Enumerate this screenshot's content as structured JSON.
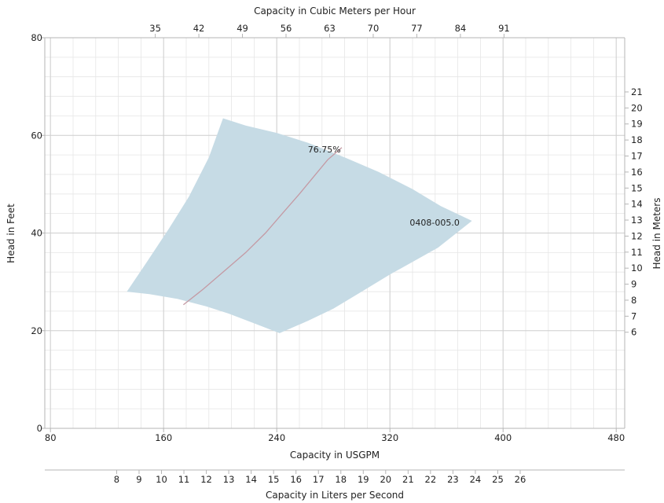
{
  "chart_data": {
    "type": "area",
    "title": "",
    "x_primary": {
      "label": "Capacity in USGPM",
      "range": [
        76,
        486
      ],
      "ticks": [
        80,
        160,
        240,
        320,
        400,
        480
      ],
      "minor_step": 16
    },
    "x_top": {
      "label": "Capacity in Cubic Meters per Hour",
      "ticks": [
        35,
        42,
        49,
        56,
        63,
        70,
        77,
        84,
        91
      ]
    },
    "x_bottom2": {
      "label": "Capacity in Liters per Second",
      "ticks": [
        8,
        9,
        10,
        11,
        12,
        13,
        14,
        15,
        16,
        17,
        18,
        19,
        20,
        21,
        22,
        23,
        24,
        25,
        26
      ]
    },
    "y_primary": {
      "label": "Head in Feet",
      "range": [
        0,
        80
      ],
      "ticks": [
        0,
        20,
        40,
        60,
        80
      ],
      "minor_step": 4
    },
    "y_right": {
      "label": "Head in Meters",
      "ticks": [
        6,
        7,
        8,
        9,
        10,
        11,
        12,
        13,
        14,
        15,
        16,
        17,
        18,
        19,
        20,
        21
      ]
    },
    "grid": true,
    "series": [
      {
        "name": "0408-005.0",
        "kind": "operating-region",
        "color": "#c6dbe5",
        "polygon": [
          [
            134,
            28
          ],
          [
            148,
            34
          ],
          [
            164,
            41
          ],
          [
            178,
            47.5
          ],
          [
            192,
            55.5
          ],
          [
            202,
            63.5
          ],
          [
            218,
            62
          ],
          [
            240,
            60.5
          ],
          [
            262,
            58.5
          ],
          [
            288,
            55.5
          ],
          [
            312,
            52.5
          ],
          [
            336,
            49
          ],
          [
            356,
            45.5
          ],
          [
            378,
            42.5
          ],
          [
            354,
            37
          ],
          [
            320,
            31.5
          ],
          [
            300,
            28
          ],
          [
            280,
            24.5
          ],
          [
            262,
            22
          ],
          [
            242,
            19.5
          ],
          [
            224,
            21.5
          ],
          [
            206,
            23.5
          ],
          [
            190,
            25
          ],
          [
            170,
            26.5
          ],
          [
            150,
            27.5
          ]
        ]
      },
      {
        "name": "76.75%",
        "kind": "efficiency-line",
        "color": "#c49aa4",
        "points": [
          [
            174,
            25.3
          ],
          [
            188,
            28.5
          ],
          [
            204,
            32.5
          ],
          [
            218,
            36
          ],
          [
            232,
            40
          ],
          [
            244,
            44
          ],
          [
            256,
            48
          ],
          [
            266,
            51.5
          ],
          [
            276,
            55
          ],
          [
            286,
            57.5
          ]
        ]
      }
    ],
    "annotations": [
      {
        "text": "76.75%",
        "x": 262,
        "y": 56.5
      },
      {
        "text": "0408-005.0",
        "x": 334,
        "y": 41.5
      }
    ]
  }
}
